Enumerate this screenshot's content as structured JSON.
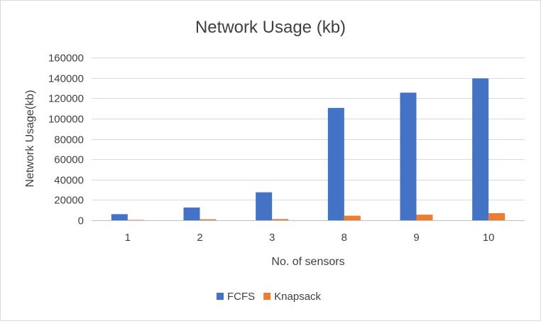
{
  "chart_data": {
    "type": "bar",
    "title": "Network Usage (kb)",
    "xlabel": "No. of sensors",
    "ylabel": "Network Usage(kb)",
    "categories": [
      "1",
      "2",
      "3",
      "8",
      "9",
      "10"
    ],
    "series": [
      {
        "name": "FCFS",
        "color": "#4472C4",
        "values": [
          6000,
          12500,
          27500,
          110500,
          125500,
          139500
        ]
      },
      {
        "name": "Knapsack",
        "color": "#ED7D31",
        "values": [
          200,
          1000,
          1200,
          4500,
          5500,
          7000
        ]
      }
    ],
    "ylim": [
      0,
      160000
    ],
    "yticks": [
      "0",
      "20000",
      "40000",
      "60000",
      "80000",
      "100000",
      "120000",
      "140000",
      "160000"
    ],
    "grid": true,
    "legend_position": "bottom"
  }
}
